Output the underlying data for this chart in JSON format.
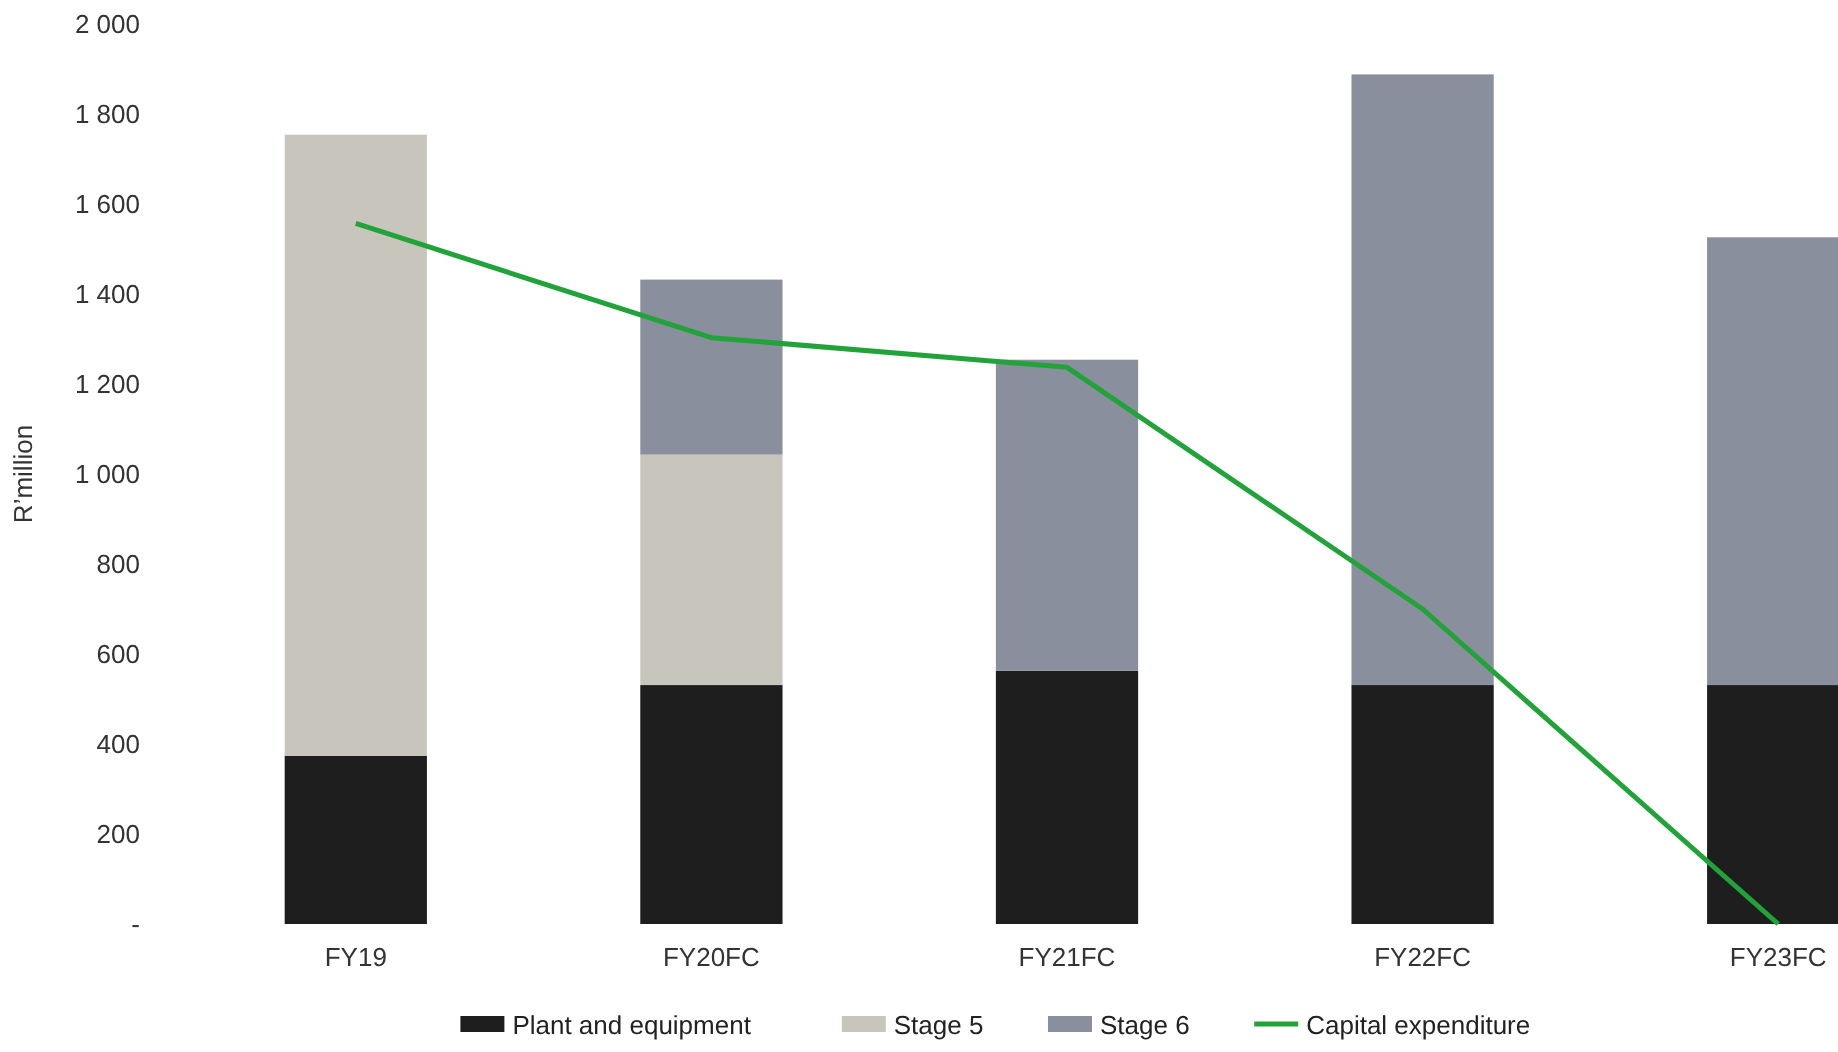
{
  "chart_data": {
    "type": "bar",
    "stacked": true,
    "ylabel": "R’million",
    "categories": [
      "FY19",
      "FY20FC",
      "FY21FC",
      "FY22FC",
      "FY23FC"
    ],
    "series": [
      {
        "name": "Plant and equipment",
        "color": "#1e1e1e",
        "values": [
          374,
          531,
          563,
          531,
          531
        ]
      },
      {
        "name": "Stage 5",
        "color": "#c8c6bc",
        "values": [
          1380,
          512,
          null,
          null,
          null
        ]
      },
      {
        "name": "Stage 6",
        "color": "#8a8f9e",
        "values": [
          null,
          389,
          691,
          1357,
          995
        ]
      },
      {
        "name": "Capital expenditure",
        "type": "line",
        "color": "#22a33a",
        "values": [
          1557,
          1303,
          1237,
          700,
          0
        ]
      }
    ],
    "ylim": [
      0,
      2000
    ],
    "yticks": [
      {
        "value": 0,
        "label": "-"
      },
      {
        "value": 200,
        "label": "200"
      },
      {
        "value": 400,
        "label": "400"
      },
      {
        "value": 600,
        "label": "600"
      },
      {
        "value": 800,
        "label": "800"
      },
      {
        "value": 1000,
        "label": "1 000"
      },
      {
        "value": 1200,
        "label": "1 200"
      },
      {
        "value": 1400,
        "label": "1 400"
      },
      {
        "value": 1600,
        "label": "1 600"
      },
      {
        "value": 1800,
        "label": "1 800"
      },
      {
        "value": 2000,
        "label": "2 000"
      }
    ],
    "legend": "bottom"
  }
}
